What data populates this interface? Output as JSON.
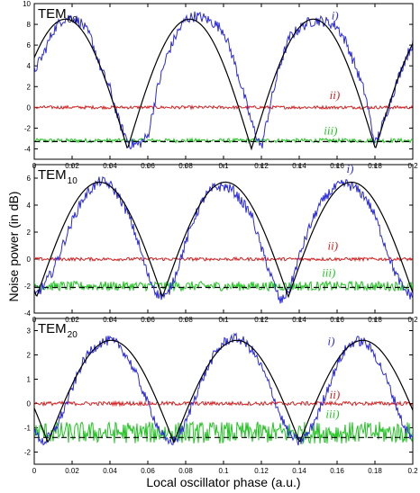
{
  "figure": {
    "xlabel": "Local oscillator phase (a.u.)",
    "ylabel": "Noise power (in dB)"
  },
  "colors": {
    "trace_i": "#2a2adc",
    "fit_i": "#000000",
    "trace_ii": "#d42020",
    "trace_iii": "#22c422",
    "reference": "#000000"
  },
  "chart_data": [
    {
      "type": "line",
      "title": "TEM",
      "title_sub": "00",
      "xlim": [
        0,
        0.2
      ],
      "ylim": [
        -5,
        10
      ],
      "xticks": [
        0,
        0.02,
        0.04,
        0.06,
        0.08,
        0.1,
        0.12,
        0.14,
        0.16,
        0.18,
        0.2
      ],
      "xtick_labels": [
        "0",
        "0.02",
        "0.04",
        "0.06",
        "0.08",
        "0.1",
        "0.12",
        "0.14",
        "0.16",
        "0.18",
        "0.2"
      ],
      "yticks": [
        -4,
        -2,
        0,
        2,
        4,
        6,
        8,
        10
      ],
      "ytick_labels": [
        "-4",
        "-2",
        "0",
        "2",
        "4",
        "6",
        "8",
        "10"
      ],
      "annotations": [
        {
          "text": "i)",
          "x": 0.157,
          "y": 8.5,
          "series": "i"
        },
        {
          "text": "ii)",
          "x": 0.156,
          "y": 0.8,
          "series": "ii"
        },
        {
          "text": "iii)",
          "x": 0.153,
          "y": -2.6,
          "series": "iii"
        }
      ],
      "fit": {
        "period": 0.0655,
        "phase": 0.0165,
        "min": -4.0,
        "max": 8.5
      },
      "series": [
        {
          "key": "i",
          "x": [
            0,
            0.005,
            0.01,
            0.015,
            0.02,
            0.025,
            0.03,
            0.035,
            0.04,
            0.045,
            0.05,
            0.055,
            0.06,
            0.065,
            0.07,
            0.075,
            0.08,
            0.085,
            0.09,
            0.095,
            0.1,
            0.105,
            0.11,
            0.115,
            0.12,
            0.125,
            0.13,
            0.135,
            0.14,
            0.145,
            0.15,
            0.155,
            0.16,
            0.165,
            0.17,
            0.175,
            0.18,
            0.185,
            0.19,
            0.195,
            0.2
          ],
          "values": [
            3.5,
            5.2,
            7.4,
            8.5,
            8.7,
            8.1,
            6.7,
            3.8,
            1.8,
            -1.5,
            -3.5,
            -3.6,
            -2.8,
            1.8,
            4.9,
            7.0,
            8.5,
            8.8,
            8.6,
            8.1,
            7.4,
            4.8,
            1.7,
            -1.6,
            -3.9,
            0.5,
            4.2,
            6.8,
            7.6,
            8.2,
            8.4,
            8.2,
            7.8,
            6.2,
            3.8,
            1.2,
            -3.6,
            -1.2,
            1.6,
            4.2,
            6.2
          ]
        },
        {
          "key": "ii",
          "level": 0.0,
          "noise": 0.15
        },
        {
          "key": "iii",
          "level": -3.2,
          "noise": 0.2
        },
        {
          "key": "ref",
          "level": -3.3
        }
      ]
    },
    {
      "type": "line",
      "title": "TEM",
      "title_sub": "10",
      "xlim": [
        0,
        0.2
      ],
      "ylim": [
        -4,
        7
      ],
      "xticks": [
        0,
        0.02,
        0.04,
        0.06,
        0.08,
        0.1,
        0.12,
        0.14,
        0.16,
        0.18,
        0.2
      ],
      "xtick_labels": [
        "0",
        "0.02",
        "0.04",
        "0.06",
        "0.08",
        "0.1",
        "0.12",
        "0.14",
        "0.16",
        "0.18",
        "0.2"
      ],
      "yticks": [
        -4,
        -2,
        0,
        2,
        4,
        6
      ],
      "ytick_labels": [
        "-4",
        "-2",
        "0",
        "2",
        "4",
        "6"
      ],
      "annotations": [
        {
          "text": "i)",
          "x": 0.165,
          "y": 6.4,
          "series": "i"
        },
        {
          "text": "ii)",
          "x": 0.155,
          "y": 0.7,
          "series": "ii"
        },
        {
          "text": "iii)",
          "x": 0.152,
          "y": -1.3,
          "series": "iii"
        }
      ],
      "fit": {
        "period": 0.0665,
        "phase": 0.0345,
        "min": -2.8,
        "max": 5.7
      },
      "series": [
        {
          "key": "i",
          "x": [
            0,
            0.005,
            0.01,
            0.015,
            0.02,
            0.025,
            0.03,
            0.035,
            0.04,
            0.045,
            0.05,
            0.055,
            0.06,
            0.065,
            0.07,
            0.075,
            0.08,
            0.085,
            0.09,
            0.095,
            0.1,
            0.105,
            0.11,
            0.115,
            0.12,
            0.125,
            0.13,
            0.135,
            0.14,
            0.145,
            0.15,
            0.155,
            0.16,
            0.165,
            0.17,
            0.175,
            0.18,
            0.185,
            0.19,
            0.195,
            0.2
          ],
          "values": [
            -2.8,
            -2.0,
            -0.8,
            1.0,
            2.8,
            4.3,
            5.2,
            5.8,
            5.5,
            4.6,
            3.2,
            1.2,
            -1.2,
            -2.6,
            -2.8,
            -1.0,
            1.2,
            3.2,
            4.6,
            5.3,
            5.4,
            5.1,
            4.2,
            3.2,
            0.8,
            -1.2,
            -3.2,
            -2.2,
            0.2,
            2.2,
            3.8,
            4.8,
            5.4,
            5.6,
            5.2,
            4.6,
            3.2,
            1.2,
            -0.8,
            -2.2,
            -2.8
          ]
        },
        {
          "key": "ii",
          "level": 0.0,
          "noise": 0.12
        },
        {
          "key": "iii",
          "level": -2.0,
          "noise": 0.35
        },
        {
          "key": "ref",
          "level": -2.1
        }
      ]
    },
    {
      "type": "line",
      "title": "TEM",
      "title_sub": "20",
      "xlim": [
        0,
        0.2
      ],
      "ylim": [
        -2.5,
        3.5
      ],
      "xticks": [
        0,
        0.02,
        0.04,
        0.06,
        0.08,
        0.1,
        0.12,
        0.14,
        0.16,
        0.18,
        0.2
      ],
      "xtick_labels": [
        "0",
        "0.02",
        "0.04",
        "0.06",
        "0.08",
        "0.1",
        "0.12",
        "0.14",
        "0.16",
        "0.18",
        "0.2"
      ],
      "yticks": [
        -2,
        -1,
        0,
        1,
        2,
        3
      ],
      "ytick_labels": [
        "-2",
        "-1",
        "0",
        "1",
        "2",
        "3"
      ],
      "annotations": [
        {
          "text": "i)",
          "x": 0.155,
          "y": 2.4,
          "series": "i"
        },
        {
          "text": "ii)",
          "x": 0.156,
          "y": 0.2,
          "series": "ii"
        },
        {
          "text": "iii)",
          "x": 0.154,
          "y": -0.6,
          "series": "iii"
        }
      ],
      "fit": {
        "period": 0.0665,
        "phase": 0.0405,
        "min": -1.6,
        "max": 2.6
      },
      "series": [
        {
          "key": "i",
          "x": [
            0,
            0.005,
            0.01,
            0.015,
            0.02,
            0.025,
            0.03,
            0.035,
            0.04,
            0.045,
            0.05,
            0.055,
            0.06,
            0.065,
            0.07,
            0.075,
            0.08,
            0.085,
            0.09,
            0.095,
            0.1,
            0.105,
            0.11,
            0.115,
            0.12,
            0.125,
            0.13,
            0.135,
            0.14,
            0.145,
            0.15,
            0.155,
            0.16,
            0.165,
            0.17,
            0.175,
            0.18,
            0.185,
            0.19,
            0.195,
            0.2
          ],
          "values": [
            -1.2,
            -1.6,
            -1.2,
            -0.4,
            0.6,
            1.6,
            2.2,
            2.5,
            2.6,
            2.4,
            1.8,
            1.0,
            0.0,
            -0.9,
            -1.6,
            -1.5,
            -0.8,
            0.3,
            1.2,
            2.0,
            2.5,
            2.7,
            2.6,
            2.2,
            1.5,
            0.6,
            -0.5,
            -1.3,
            -1.6,
            -1.2,
            -0.4,
            0.6,
            1.6,
            2.3,
            2.6,
            2.5,
            2.0,
            1.2,
            0.2,
            -0.9,
            -1.5
          ]
        },
        {
          "key": "ii",
          "level": 0.0,
          "noise": 0.08
        },
        {
          "key": "iii",
          "level": -1.2,
          "noise": 0.45
        },
        {
          "key": "ref",
          "level": -1.4
        }
      ]
    }
  ]
}
